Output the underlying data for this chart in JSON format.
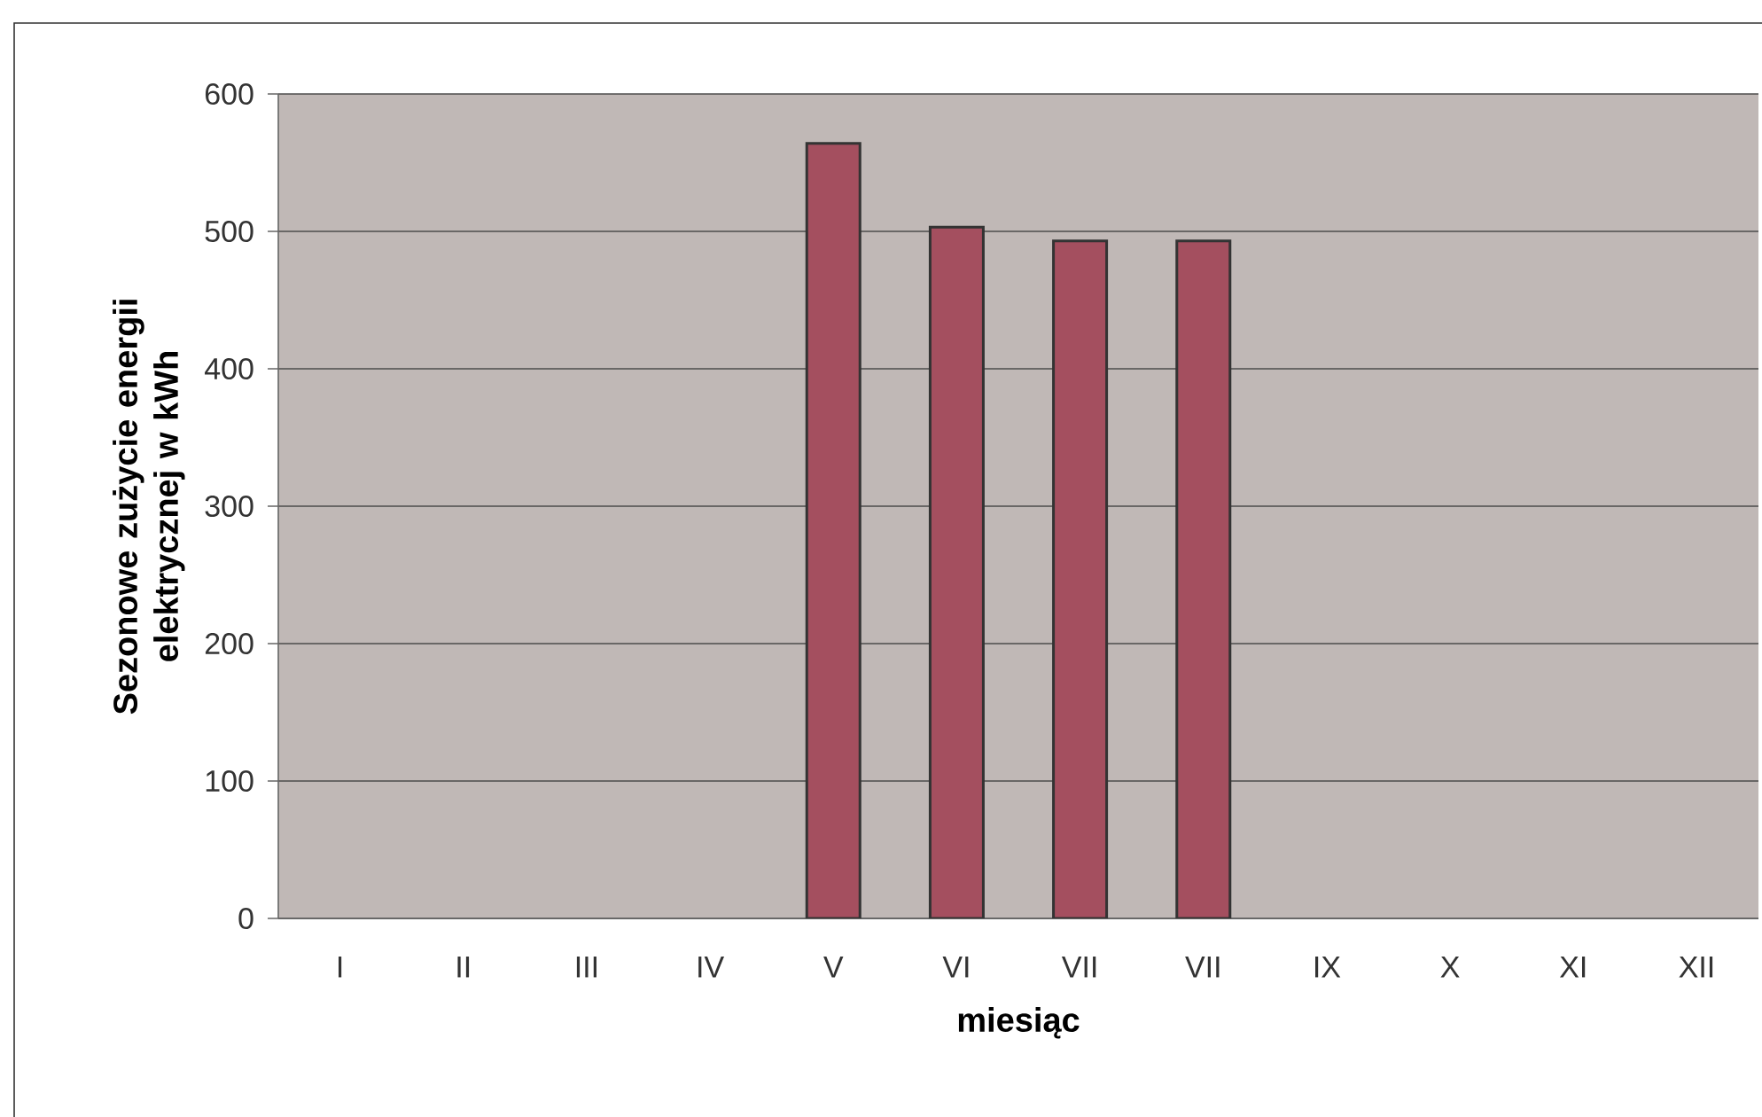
{
  "chart_data": {
    "type": "bar",
    "xlabel": "miesiąc",
    "ylabel": "Sezonowe zużycie energii elektrycznej w kWh",
    "categories": [
      "I",
      "II",
      "III",
      "IV",
      "V",
      "VI",
      "VII",
      "VII",
      "IX",
      "X",
      "XI",
      "XII"
    ],
    "values": [
      null,
      null,
      null,
      null,
      564,
      503,
      493,
      493,
      null,
      null,
      null,
      null
    ],
    "color": "#a44f5f",
    "ylim": [
      0,
      600
    ],
    "yticks": [
      0,
      100,
      200,
      300,
      400,
      500,
      600
    ],
    "grid": "y"
  }
}
